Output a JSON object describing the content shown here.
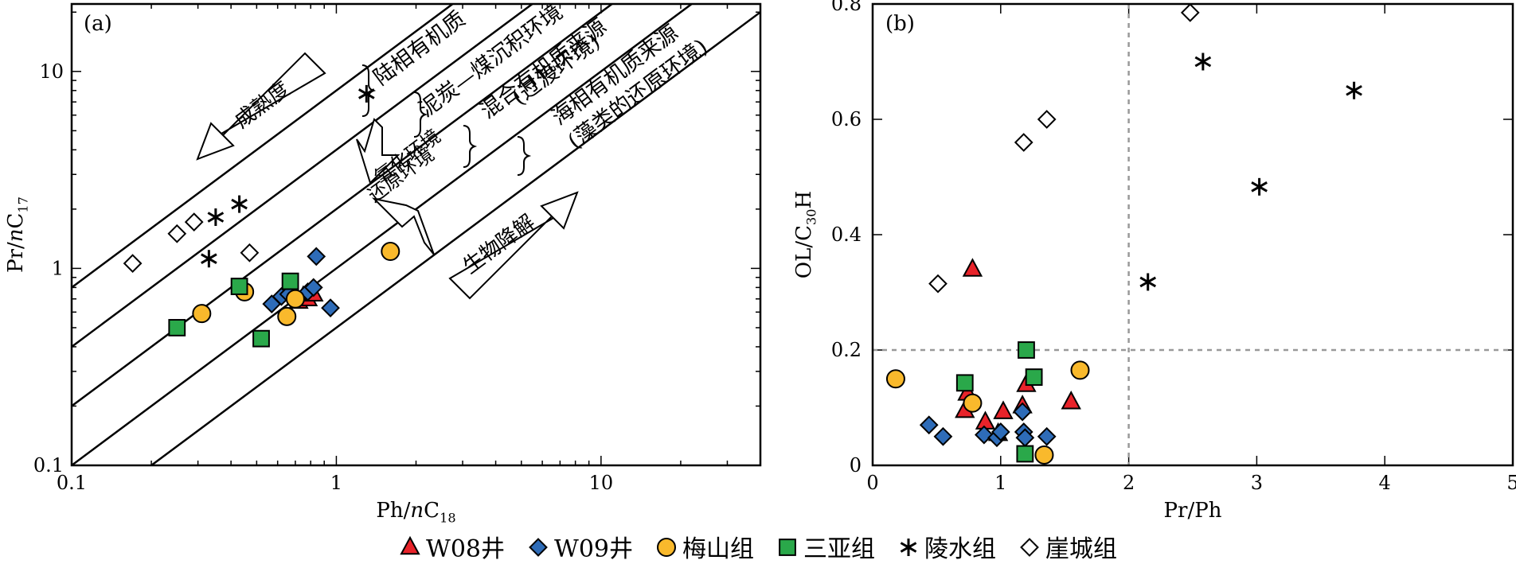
{
  "chart_data": [
    {
      "panel": "(a)",
      "type": "scatter",
      "xlabel": "Ph/nC18",
      "ylabel": "Pr/nC17",
      "xscale": "log",
      "yscale": "log",
      "xlim": [
        0.1,
        40
      ],
      "ylim": [
        0.1,
        22
      ],
      "xticks": [
        "0.1",
        "1",
        "10"
      ],
      "yticks": [
        "0.1",
        "1",
        "10"
      ],
      "annotations": [
        "陆相有机质",
        "泥炭—煤沉积环境",
        "混合有机质来源",
        "(过渡环境)",
        "海相有机质来源",
        "(藻类的还原环境)",
        "成熟度",
        "氧化环境",
        "还原环境",
        "生物降解"
      ],
      "series": [
        {
          "name": "W08井",
          "marker": "triangle",
          "color": "#e8232a",
          "points": [
            [
              0.72,
              0.68
            ],
            [
              0.75,
              0.72
            ],
            [
              0.78,
              0.7
            ],
            [
              0.82,
              0.74
            ]
          ]
        },
        {
          "name": "W09井",
          "marker": "diamond",
          "color": "#2e6cb8",
          "points": [
            [
              0.57,
              0.66
            ],
            [
              0.62,
              0.72
            ],
            [
              0.66,
              0.74
            ],
            [
              0.7,
              0.7
            ],
            [
              0.78,
              0.76
            ],
            [
              0.82,
              0.8
            ],
            [
              0.84,
              1.15
            ],
            [
              0.95,
              0.63
            ]
          ]
        },
        {
          "name": "梅山组",
          "marker": "circle",
          "color": "#f9b92c",
          "points": [
            [
              0.31,
              0.59
            ],
            [
              0.45,
              0.76
            ],
            [
              0.65,
              0.57
            ],
            [
              0.7,
              0.7
            ],
            [
              1.6,
              1.22
            ]
          ]
        },
        {
          "name": "三亚组",
          "marker": "square",
          "color": "#2aa84a",
          "points": [
            [
              0.25,
              0.5
            ],
            [
              0.43,
              0.81
            ],
            [
              0.52,
              0.44
            ],
            [
              0.67,
              0.86
            ]
          ]
        },
        {
          "name": "陵水组",
          "marker": "asterisk",
          "color": "#000000",
          "points": [
            [
              0.33,
              1.12
            ],
            [
              0.35,
              1.82
            ],
            [
              0.43,
              2.12
            ],
            [
              1.3,
              7.7
            ]
          ]
        },
        {
          "name": "崖城组",
          "marker": "diamond-open",
          "color": "#ffffff",
          "points": [
            [
              0.17,
              1.06
            ],
            [
              0.25,
              1.5
            ],
            [
              0.29,
              1.72
            ],
            [
              0.47,
              1.2
            ]
          ]
        }
      ]
    },
    {
      "panel": "(b)",
      "type": "scatter",
      "xlabel": "Pr/Ph",
      "ylabel": "OL/C30H",
      "xlim": [
        0,
        5
      ],
      "ylim": [
        0,
        0.8
      ],
      "xticks": [
        "0",
        "1",
        "2",
        "3",
        "4",
        "5"
      ],
      "yticks": [
        "0",
        "0.2",
        "0.4",
        "0.6",
        "0.8"
      ],
      "reference_lines": {
        "x": 2,
        "y": 0.2
      },
      "series": [
        {
          "name": "W08井",
          "marker": "triangle",
          "color": "#e8232a",
          "points": [
            [
              0.78,
              0.34
            ],
            [
              0.74,
              0.125
            ],
            [
              0.72,
              0.095
            ],
            [
              0.88,
              0.075
            ],
            [
              0.98,
              0.055
            ],
            [
              1.02,
              0.093
            ],
            [
              1.17,
              0.103
            ],
            [
              1.2,
              0.14
            ],
            [
              1.55,
              0.11
            ]
          ]
        },
        {
          "name": "W09井",
          "marker": "diamond",
          "color": "#2e6cb8",
          "points": [
            [
              0.44,
              0.07
            ],
            [
              0.55,
              0.05
            ],
            [
              0.87,
              0.053
            ],
            [
              0.97,
              0.048
            ],
            [
              1.0,
              0.058
            ],
            [
              1.17,
              0.093
            ],
            [
              1.18,
              0.058
            ],
            [
              1.19,
              0.048
            ],
            [
              1.36,
              0.05
            ]
          ]
        },
        {
          "name": "梅山组",
          "marker": "circle",
          "color": "#f9b92c",
          "points": [
            [
              0.18,
              0.15
            ],
            [
              0.78,
              0.108
            ],
            [
              1.34,
              0.018
            ],
            [
              1.62,
              0.165
            ]
          ]
        },
        {
          "name": "三亚组",
          "marker": "square",
          "color": "#2aa84a",
          "points": [
            [
              0.72,
              0.143
            ],
            [
              1.2,
              0.2
            ],
            [
              1.26,
              0.153
            ],
            [
              1.19,
              0.02
            ]
          ]
        },
        {
          "name": "陵水组",
          "marker": "asterisk",
          "color": "#000000",
          "points": [
            [
              2.15,
              0.318
            ],
            [
              2.58,
              0.7
            ],
            [
              3.02,
              0.483
            ],
            [
              3.76,
              0.65
            ]
          ]
        },
        {
          "name": "崖城组",
          "marker": "diamond-open",
          "color": "#ffffff",
          "points": [
            [
              0.51,
              0.315
            ],
            [
              1.18,
              0.56
            ],
            [
              1.36,
              0.6
            ],
            [
              2.48,
              0.785
            ]
          ]
        }
      ]
    }
  ],
  "legend": [
    {
      "label": "W08井",
      "marker": "triangle",
      "color": "#e8232a"
    },
    {
      "label": "W09井",
      "marker": "diamond",
      "color": "#2e6cb8"
    },
    {
      "label": "梅山组",
      "marker": "circle",
      "color": "#f9b92c"
    },
    {
      "label": "三亚组",
      "marker": "square",
      "color": "#2aa84a"
    },
    {
      "label": "陵水组",
      "marker": "asterisk",
      "color": "#000000"
    },
    {
      "label": "崖城组",
      "marker": "diamond-open",
      "color": "#ffffff"
    }
  ]
}
